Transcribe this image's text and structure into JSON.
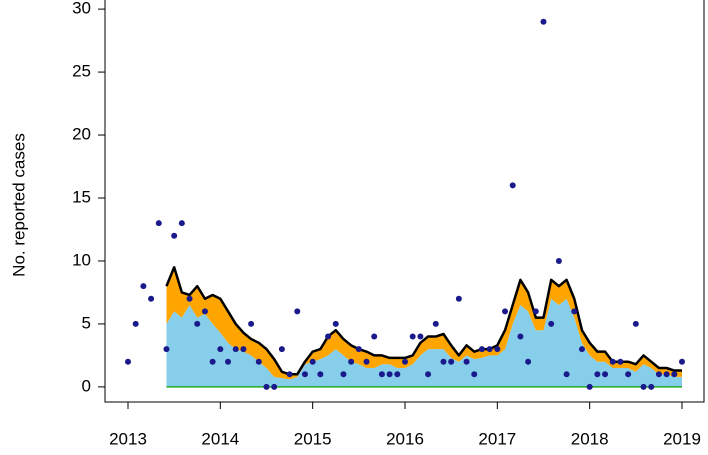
{
  "chart_data": {
    "type": "area",
    "stacked": true,
    "ylabel": "No. reported cases",
    "categories": [
      "2013",
      null,
      null,
      null,
      null,
      null,
      null,
      null,
      null,
      null,
      null,
      null,
      "2014",
      null,
      null,
      null,
      null,
      null,
      null,
      null,
      null,
      null,
      null,
      null,
      "2015",
      null,
      null,
      null,
      null,
      null,
      null,
      null,
      null,
      null,
      null,
      null,
      "2016",
      null,
      null,
      null,
      null,
      null,
      null,
      null,
      null,
      null,
      null,
      null,
      "2017",
      null,
      null,
      null,
      null,
      null,
      null,
      null,
      null,
      null,
      null,
      null,
      "2018",
      null,
      null,
      null,
      null,
      null,
      null,
      null,
      null,
      null,
      null,
      null,
      "2019"
    ],
    "series": [
      {
        "color": "#22aa22",
        "line": "#22aa22",
        "values": [
          null,
          null,
          null,
          null,
          null,
          0,
          0,
          0,
          0,
          0,
          0,
          0,
          0,
          0,
          0,
          0,
          0,
          0,
          0,
          0,
          0,
          0,
          0,
          0,
          0,
          0,
          0,
          0,
          0,
          0,
          0,
          0,
          0,
          0,
          0,
          0,
          0,
          0,
          0,
          0,
          0,
          0,
          0,
          0,
          0,
          0,
          0,
          0,
          0,
          0,
          0,
          0,
          0,
          0,
          0,
          0,
          0,
          0,
          0,
          0,
          0,
          0,
          0,
          0,
          0,
          0,
          0,
          0,
          0,
          0,
          0,
          0,
          0
        ]
      },
      {
        "color": "#87ceeb",
        "values": [
          null,
          null,
          null,
          null,
          null,
          5,
          6,
          5.5,
          6.5,
          5.5,
          5.8,
          5,
          4.3,
          3.5,
          3,
          2.8,
          2.5,
          2,
          1.5,
          0.8,
          0.7,
          0.6,
          0.8,
          1.8,
          2,
          2.2,
          2.5,
          3,
          2.5,
          2,
          1.8,
          1.5,
          1.5,
          1.8,
          1.8,
          1.5,
          1.5,
          1.8,
          2.5,
          3,
          3,
          3,
          2.3,
          2,
          2.5,
          2.2,
          2.3,
          2.5,
          2.5,
          3,
          5,
          6.5,
          6,
          4.5,
          4.5,
          7,
          6.5,
          7,
          5.5,
          3.5,
          2.5,
          2,
          2,
          1.5,
          1.5,
          1.5,
          1.2,
          1.8,
          1.5,
          1,
          1,
          0.8,
          0.8
        ]
      },
      {
        "color": "#ffa500",
        "line": "#000000",
        "values": [
          null,
          null,
          null,
          null,
          null,
          3,
          3.5,
          2,
          0.8,
          2.5,
          1.2,
          2.3,
          2.7,
          2.5,
          2,
          1.5,
          1.3,
          1.5,
          1.5,
          1.4,
          0.5,
          0.4,
          0.2,
          0.2,
          0.8,
          0.8,
          1.5,
          1.5,
          1.3,
          1.3,
          1.2,
          1.3,
          1,
          0.7,
          0.5,
          0.8,
          0.8,
          0.7,
          1,
          1,
          1,
          1.2,
          1,
          0.5,
          0.8,
          0.6,
          0.7,
          0.5,
          0.8,
          1.5,
          1.5,
          2,
          1.5,
          1,
          1,
          1.5,
          1.5,
          1.5,
          1.5,
          1,
          1,
          0.8,
          0.8,
          0.5,
          0.5,
          0.5,
          0.6,
          0.7,
          0.5,
          0.5,
          0.5,
          0.5,
          0.5
        ]
      }
    ],
    "points": {
      "color": "#1a1a8c",
      "values": [
        2,
        5,
        8,
        7,
        13,
        3,
        12,
        13,
        7,
        5,
        6,
        2,
        3,
        2,
        3,
        3,
        5,
        2,
        0,
        0,
        3,
        1,
        6,
        1,
        2,
        1,
        4,
        5,
        1,
        2,
        3,
        2,
        4,
        1,
        1,
        1,
        2,
        4,
        4,
        1,
        5,
        2,
        2,
        7,
        2,
        1,
        3,
        3,
        3,
        6,
        16,
        4,
        2,
        6,
        29,
        5,
        10,
        1,
        6,
        3,
        0,
        1,
        1,
        2,
        2,
        1,
        5,
        0,
        0,
        1,
        1,
        1,
        2
      ]
    },
    "ylim": [
      -1.2,
      31.2
    ],
    "yticks": [
      0,
      5,
      10,
      15,
      20,
      25,
      30
    ]
  }
}
